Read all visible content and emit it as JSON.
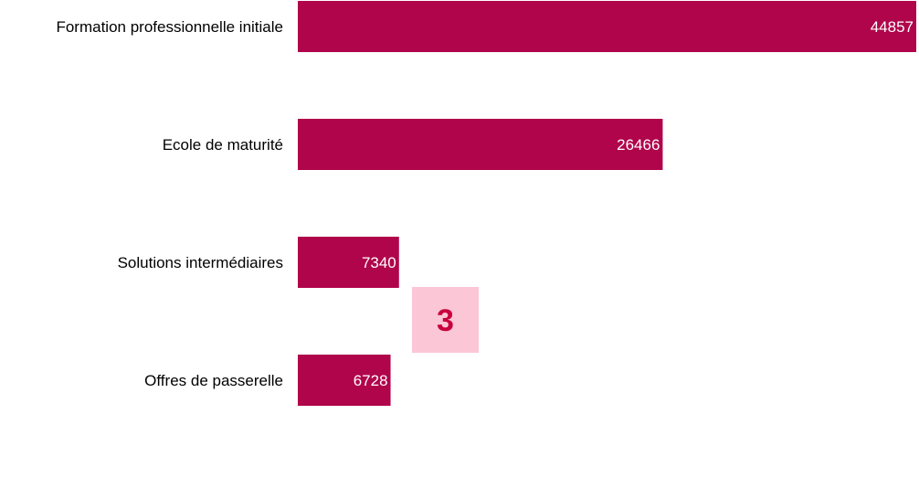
{
  "chart_data": {
    "type": "bar",
    "orientation": "horizontal",
    "categories": [
      "Formation professionnelle initiale",
      "Ecole de maturité",
      "Solutions intermédiaires",
      "Offres de passerelle"
    ],
    "values": [
      44857,
      26466,
      7340,
      6728
    ],
    "title": "",
    "xlabel": "",
    "ylabel": "",
    "xlim": [
      0,
      46000
    ],
    "grid": false,
    "legend": "none",
    "bar_color": "#b0044b"
  },
  "badge": {
    "label": "3",
    "background": "#fbc6d6",
    "text_color": "#c8003c"
  }
}
